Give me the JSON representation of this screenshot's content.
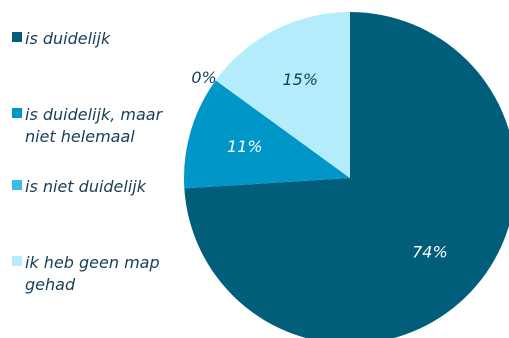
{
  "chart_data": {
    "type": "pie",
    "categories": [
      "is duidelijk",
      "is duidelijk, maar niet helemaal",
      "is niet duidelijk",
      "ik heb geen map gehad"
    ],
    "values": [
      74,
      11,
      0,
      15
    ],
    "data_labels": [
      "74%",
      "11%",
      "0%",
      "15%"
    ],
    "colors": [
      "#005E7A",
      "#0096C8",
      "#3ABDE6",
      "#B5ECFB"
    ],
    "label_colors": [
      "#ffffff",
      "#ffffff",
      "#173e57",
      "#173e57"
    ],
    "legend_placement": "left"
  }
}
